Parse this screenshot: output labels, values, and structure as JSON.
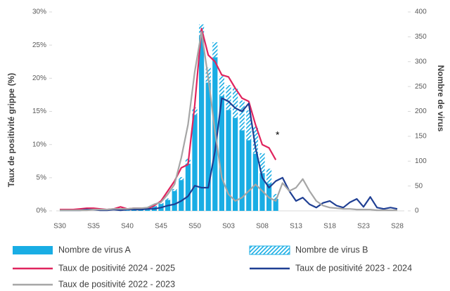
{
  "chart_data": {
    "type": "combo",
    "y_label": "Taux de positivité grippe (%)",
    "y2_label": "Nombre de virus",
    "annotation": "*",
    "legend": "bottom",
    "categories": [
      "S30",
      null,
      null,
      null,
      null,
      "S35",
      null,
      null,
      null,
      null,
      "S40",
      null,
      null,
      null,
      null,
      "S45",
      null,
      null,
      null,
      null,
      "S50",
      null,
      null,
      null,
      null,
      "S03",
      null,
      null,
      null,
      null,
      "S08",
      null,
      null,
      null,
      null,
      "S13",
      null,
      null,
      null,
      null,
      "S18",
      null,
      null,
      null,
      null,
      "S23",
      null,
      null,
      null,
      null,
      "S28"
    ],
    "ylim": [
      0,
      30
    ],
    "yticks": [
      {
        "value": 0,
        "label": "0%"
      },
      {
        "value": 5,
        "label": "5%"
      },
      {
        "value": 10,
        "label": "10%"
      },
      {
        "value": 15,
        "label": "15%"
      },
      {
        "value": 20,
        "label": "20%"
      },
      {
        "value": 25,
        "label": "25%"
      },
      {
        "value": 30,
        "label": "30%"
      }
    ],
    "y2lim": [
      0,
      400
    ],
    "y2ticks": [
      0,
      50,
      100,
      150,
      200,
      250,
      300,
      350,
      400
    ],
    "series": [
      {
        "name": "Nombre de virus A",
        "type": "bar",
        "axis": "y2",
        "color": "#19ade4",
        "values": [
          0,
          0,
          0,
          0,
          0,
          0,
          0,
          0,
          0,
          0,
          1,
          2,
          3,
          5,
          9,
          14,
          22,
          40,
          62,
          95,
          193,
          350,
          258,
          309,
          231,
          203,
          187,
          162,
          142,
          115,
          76,
          55,
          24,
          null,
          null,
          null,
          null,
          null,
          null,
          null,
          null,
          null,
          null,
          null,
          null,
          null,
          null,
          null,
          null,
          null,
          null
        ]
      },
      {
        "name": "Nombre de virus B",
        "type": "bar",
        "axis": "y2",
        "color": "#19ade4",
        "hatch": true,
        "values": [
          0,
          0,
          0,
          0,
          0,
          0,
          0,
          0,
          0,
          0,
          0,
          0,
          0,
          0,
          1,
          2,
          3,
          4,
          6,
          10,
          15,
          25,
          30,
          30,
          40,
          50,
          60,
          60,
          60,
          55,
          40,
          30,
          10,
          null,
          null,
          null,
          null,
          null,
          null,
          null,
          null,
          null,
          null,
          null,
          null,
          null,
          null,
          null,
          null,
          null,
          null
        ]
      },
      {
        "name": "Taux de positivité 2024 - 2025",
        "type": "line",
        "color": "#e0245e",
        "values": [
          0.2,
          0.2,
          0.2,
          0.3,
          0.4,
          0.4,
          0.3,
          0.2,
          0.3,
          0.6,
          0.3,
          0.4,
          0.4,
          0.3,
          0.8,
          1.5,
          3.0,
          4.5,
          6.5,
          7.0,
          16,
          27.5,
          23.5,
          22.5,
          20.5,
          20.2,
          18.5,
          17,
          16.5,
          13,
          10,
          9.5,
          7.7,
          null,
          null,
          null,
          null,
          null,
          null,
          null,
          null,
          null,
          null,
          null,
          null,
          null,
          null,
          null,
          null,
          null,
          null
        ]
      },
      {
        "name": "Taux de positivité 2023 - 2024",
        "type": "line",
        "color": "#1f3f93",
        "values": [
          0.1,
          0.1,
          0.1,
          0.1,
          0.2,
          0.2,
          0.1,
          0.1,
          0.2,
          0.1,
          0.2,
          0.2,
          0.2,
          0.3,
          0.3,
          0.5,
          0.8,
          1.0,
          1.5,
          2.2,
          3.8,
          3.5,
          3.5,
          9,
          17,
          16.5,
          15.5,
          15,
          16.2,
          9.5,
          5,
          3.5,
          4.5,
          5,
          3,
          1.5,
          2,
          1,
          0.5,
          1.2,
          1.5,
          0.8,
          0.5,
          1.3,
          1.8,
          0.6,
          2.1,
          0.5,
          0.3,
          0.5,
          0.3
        ]
      },
      {
        "name": "Taux de positivité 2022 - 2023",
        "type": "line",
        "color": "#a6a6a6",
        "values": [
          0.1,
          0.1,
          0.1,
          0.1,
          0.1,
          0.2,
          0.2,
          0.2,
          0.3,
          0.3,
          0.3,
          0.4,
          0.4,
          0.5,
          1.0,
          1.3,
          2.5,
          4,
          8,
          13,
          21,
          27,
          20,
          12,
          5,
          2.5,
          1.5,
          2,
          3,
          4,
          3,
          2,
          1.5,
          4.2,
          3,
          3.5,
          4.8,
          3,
          1.5,
          0.8,
          0.5,
          0.4,
          0.3,
          0.3,
          0.2,
          0.2,
          0.2,
          0.1,
          0.1,
          0.1,
          0.1
        ]
      }
    ]
  }
}
